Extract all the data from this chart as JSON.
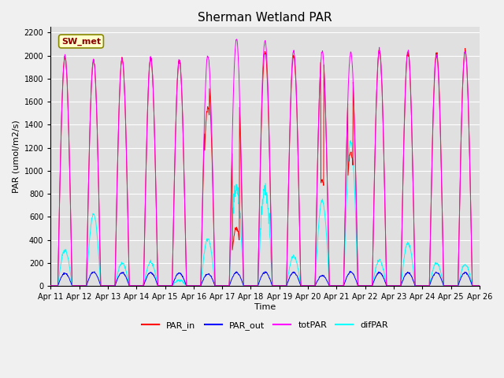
{
  "title": "Sherman Wetland PAR",
  "ylabel": "PAR (umol/m2/s)",
  "xlabel": "Time",
  "legend_label": "SW_met",
  "series_labels": [
    "PAR_in",
    "PAR_out",
    "totPAR",
    "difPAR"
  ],
  "series_colors": [
    "red",
    "blue",
    "#ff00ff",
    "cyan"
  ],
  "ylim": [
    0,
    2250
  ],
  "yticks": [
    0,
    200,
    400,
    600,
    800,
    1000,
    1200,
    1400,
    1600,
    1800,
    2000,
    2200
  ],
  "fig_bg_color": "#f0f0f0",
  "plot_bg_color": "#e0e0e0",
  "n_days": 15,
  "start_day": 11,
  "title_fontsize": 11,
  "axis_fontsize": 8,
  "tick_fontsize": 7,
  "legend_box_facecolor": "#ffffcc",
  "legend_box_edgecolor": "#888800",
  "legend_text_color": "#8B0000"
}
